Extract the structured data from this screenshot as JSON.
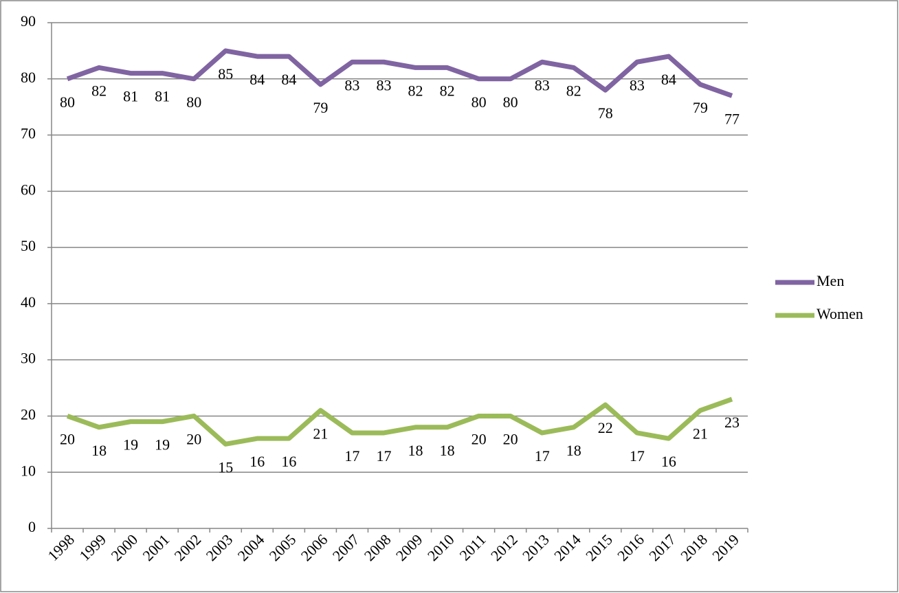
{
  "chart_data": {
    "type": "line",
    "categories": [
      "1998",
      "1999",
      "2000",
      "2001",
      "2002",
      "2003",
      "2004",
      "2005",
      "2006",
      "2007",
      "2008",
      "2009",
      "2010",
      "2011",
      "2012",
      "2013",
      "2014",
      "2015",
      "2016",
      "2017",
      "2018",
      "2019"
    ],
    "series": [
      {
        "name": "Men",
        "color": "#8064a2",
        "values": [
          80,
          82,
          81,
          81,
          80,
          85,
          84,
          84,
          79,
          83,
          83,
          82,
          82,
          80,
          80,
          83,
          82,
          78,
          83,
          84,
          79,
          77
        ]
      },
      {
        "name": "Women",
        "color": "#9bbb59",
        "values": [
          20,
          18,
          19,
          19,
          20,
          15,
          16,
          16,
          21,
          17,
          17,
          18,
          18,
          20,
          20,
          17,
          18,
          22,
          17,
          16,
          21,
          23
        ]
      }
    ],
    "ylim": [
      0,
      90
    ],
    "yticks": [
      0,
      10,
      20,
      30,
      40,
      50,
      60,
      70,
      80,
      90
    ],
    "grid": true,
    "legend": "right",
    "data_labels": true
  }
}
